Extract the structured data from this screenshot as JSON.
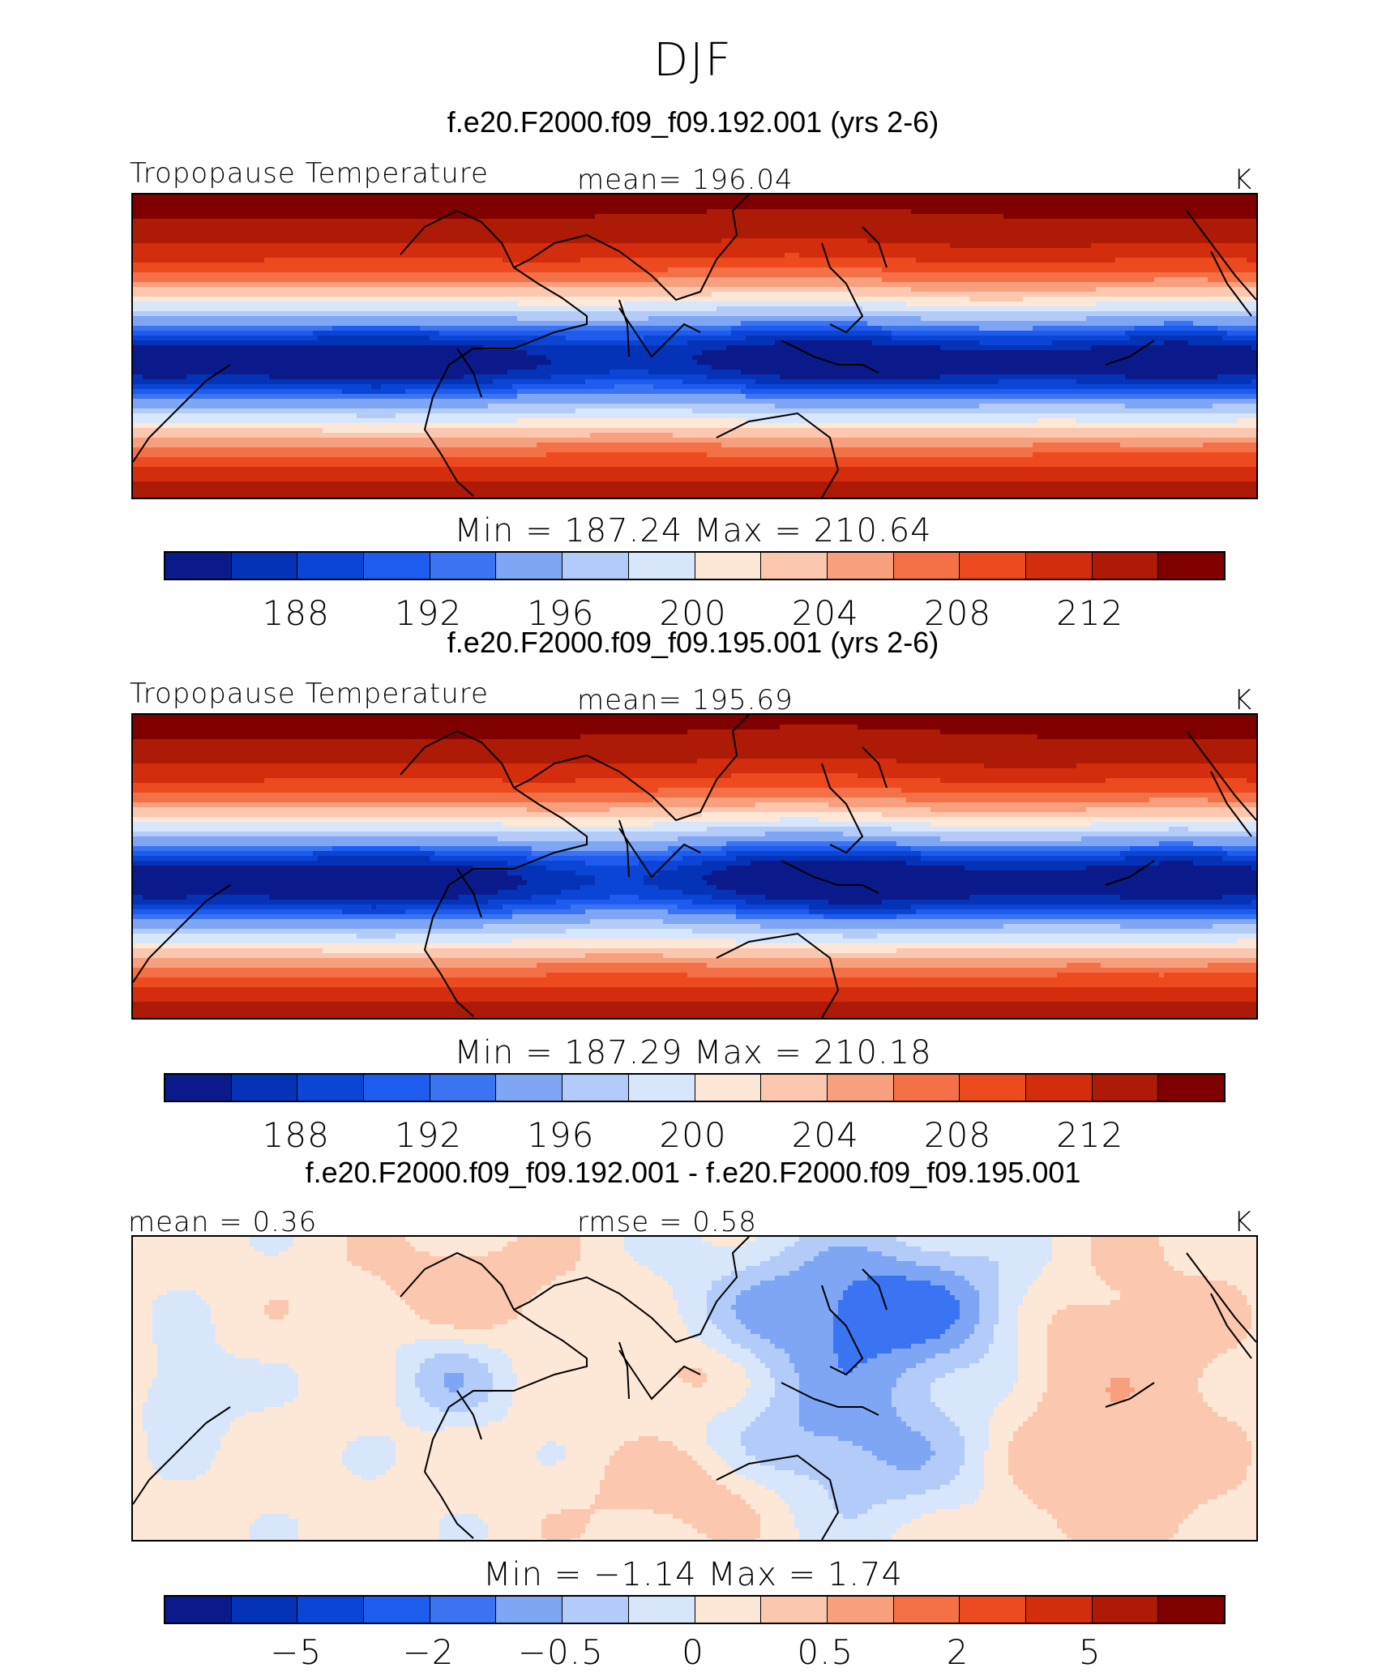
{
  "figure": {
    "season": "DJF",
    "colors": [
      "#0a1a8a",
      "#0533b8",
      "#0a45d6",
      "#1e5cf0",
      "#3a74f2",
      "#7ea6f5",
      "#b3cbf8",
      "#d7e6fb",
      "#fde8d8",
      "#fbc7ae",
      "#f8a07e",
      "#f47148",
      "#ee4a1f",
      "#d42d0e",
      "#ad1a06",
      "#800000"
    ],
    "panels": [
      {
        "title": "f.e20.F2000.f09_f09.192.001 (yrs 2-6)",
        "left_label": "Tropopause Temperature",
        "center_label": "mean=  196.04",
        "units": "K",
        "minmax": "Min  =  187.24  Max  =  210.64",
        "ticks": [
          "188",
          "192",
          "196",
          "200",
          "204",
          "208",
          "212"
        ],
        "variant": "model_a"
      },
      {
        "title": "f.e20.F2000.f09_f09.195.001 (yrs 2-6)",
        "left_label": "Tropopause Temperature",
        "center_label": "mean=  195.69",
        "units": "K",
        "minmax": "Min  =  187.29  Max  =  210.18",
        "ticks": [
          "188",
          "192",
          "196",
          "200",
          "204",
          "208",
          "212"
        ],
        "variant": "model_b"
      },
      {
        "title": "f.e20.F2000.f09_f09.192.001 - f.e20.F2000.f09_f09.195.001",
        "left_label": "mean =    0.36",
        "center_label": "rmse =    0.58",
        "units": "K",
        "minmax": "Min  =   −1.14  Max  =     1.74",
        "ticks": [
          "−5",
          "−2",
          "−0.5",
          "0",
          "0.5",
          "2",
          "5"
        ],
        "variant": "diff"
      }
    ]
  }
}
